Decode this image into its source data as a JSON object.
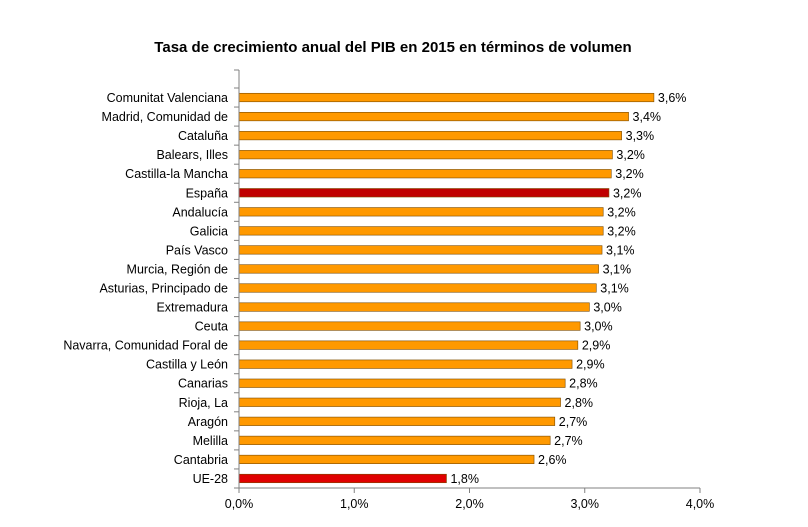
{
  "chart_data": {
    "type": "bar",
    "orientation": "horizontal",
    "title": "Tasa de crecimiento anual del PIB en 2015 en términos de volumen",
    "categories": [
      "Comunitat Valenciana",
      "Madrid, Comunidad de",
      "Cataluña",
      "Balears, Illes",
      "Castilla-la Mancha",
      "España",
      "Andalucía",
      "Galicia",
      "País Vasco",
      "Murcia, Región de",
      "Asturias, Principado de",
      "Extremadura",
      "Ceuta",
      "Navarra, Comunidad Foral de",
      "Castilla y León",
      "Canarias",
      "Rioja, La",
      "Aragón",
      "Melilla",
      "Cantabria",
      "UE-28"
    ],
    "values": [
      3.6,
      3.38,
      3.32,
      3.24,
      3.23,
      3.21,
      3.16,
      3.16,
      3.15,
      3.12,
      3.1,
      3.04,
      2.96,
      2.94,
      2.89,
      2.83,
      2.79,
      2.74,
      2.7,
      2.56,
      1.8
    ],
    "value_labels": [
      "3,6%",
      "3,4%",
      "3,3%",
      "3,2%",
      "3,2%",
      "3,2%",
      "3,2%",
      "3,2%",
      "3,1%",
      "3,1%",
      "3,1%",
      "3,0%",
      "3,0%",
      "2,9%",
      "2,9%",
      "2,8%",
      "2,8%",
      "2,7%",
      "2,7%",
      "2,6%",
      "1,8%"
    ],
    "bar_colors": [
      "#FF9900",
      "#FF9900",
      "#FF9900",
      "#FF9900",
      "#FF9900",
      "#C00000",
      "#FF9900",
      "#FF9900",
      "#FF9900",
      "#FF9900",
      "#FF9900",
      "#FF9900",
      "#FF9900",
      "#FF9900",
      "#FF9900",
      "#FF9900",
      "#FF9900",
      "#FF9900",
      "#FF9900",
      "#FF9900",
      "#E00000"
    ],
    "xlim": [
      0,
      4
    ],
    "xticks": [
      0,
      1,
      2,
      3,
      4
    ],
    "xtick_labels": [
      "0,0%",
      "1,0%",
      "2,0%",
      "3,0%",
      "4,0%"
    ],
    "grid": false,
    "legend": "none"
  }
}
